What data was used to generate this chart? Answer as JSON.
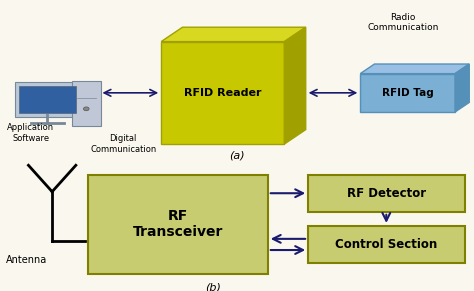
{
  "bg_color": "#faf8ee",
  "rfid_reader_front": "#c8c800",
  "rfid_reader_top": "#d8d820",
  "rfid_reader_right": "#a0a000",
  "rfid_tag_color": "#7bafd4",
  "rfid_tag_edge": "#5590b8",
  "rf_transceiver_color": "#c8cc70",
  "rf_detector_color": "#c8cc70",
  "control_section_color": "#c8cc70",
  "box_edge_color": "#808000",
  "arrow_color": "#1a1a6e",
  "label_a": "(a)",
  "label_b": "(b)",
  "rfid_reader_text": "RFID Reader",
  "rfid_tag_text": "RFID Tag",
  "rf_transceiver_text": "RF\nTransceiver",
  "rf_detector_text": "RF Detector",
  "control_section_text": "Control Section",
  "radio_comm_text": "Radio\nCommunication",
  "digital_comm_text": "Digital\nCommunication",
  "app_software_text": "Application\nSoftware",
  "antenna_text": "Antenna"
}
